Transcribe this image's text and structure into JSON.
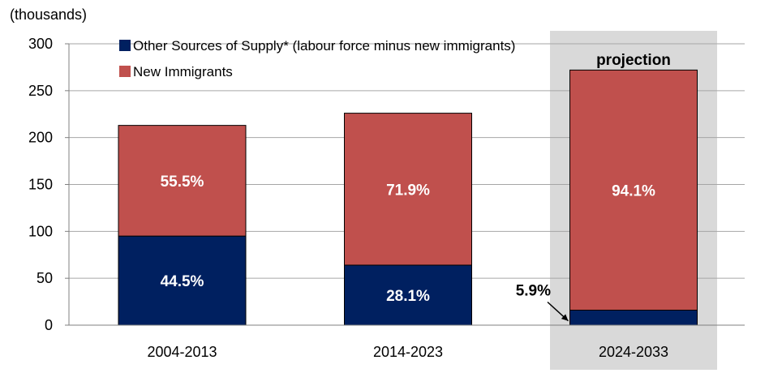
{
  "chart_data": {
    "type": "bar",
    "stacked": true,
    "unit_label": "(thousands)",
    "categories": [
      "2004-2013",
      "2014-2023",
      "2024-2033"
    ],
    "series": [
      {
        "name": "Other Sources of Supply* (labour force minus new immigrants)",
        "values": [
          95,
          64,
          16
        ],
        "labels": [
          "44.5%",
          "28.1%",
          "5.9%"
        ],
        "color": "#002060"
      },
      {
        "name": "New Immigrants",
        "values": [
          118,
          162,
          256
        ],
        "labels": [
          "55.5%",
          "71.9%",
          "94.1%"
        ],
        "color": "#C0504D"
      }
    ],
    "ylim": [
      0,
      300
    ],
    "yticks": [
      0,
      50,
      100,
      150,
      200,
      250,
      300
    ],
    "grid": true,
    "legend_position": "top-left",
    "projection": {
      "label": "projection",
      "category": "2024-2033",
      "shade_color": "#D9D9D9"
    },
    "colors": {
      "label_text_light": "#FFFFFF",
      "label_text_dark": "#000000",
      "gridline": "#A6A6A6",
      "axis_text": "#000000"
    }
  }
}
